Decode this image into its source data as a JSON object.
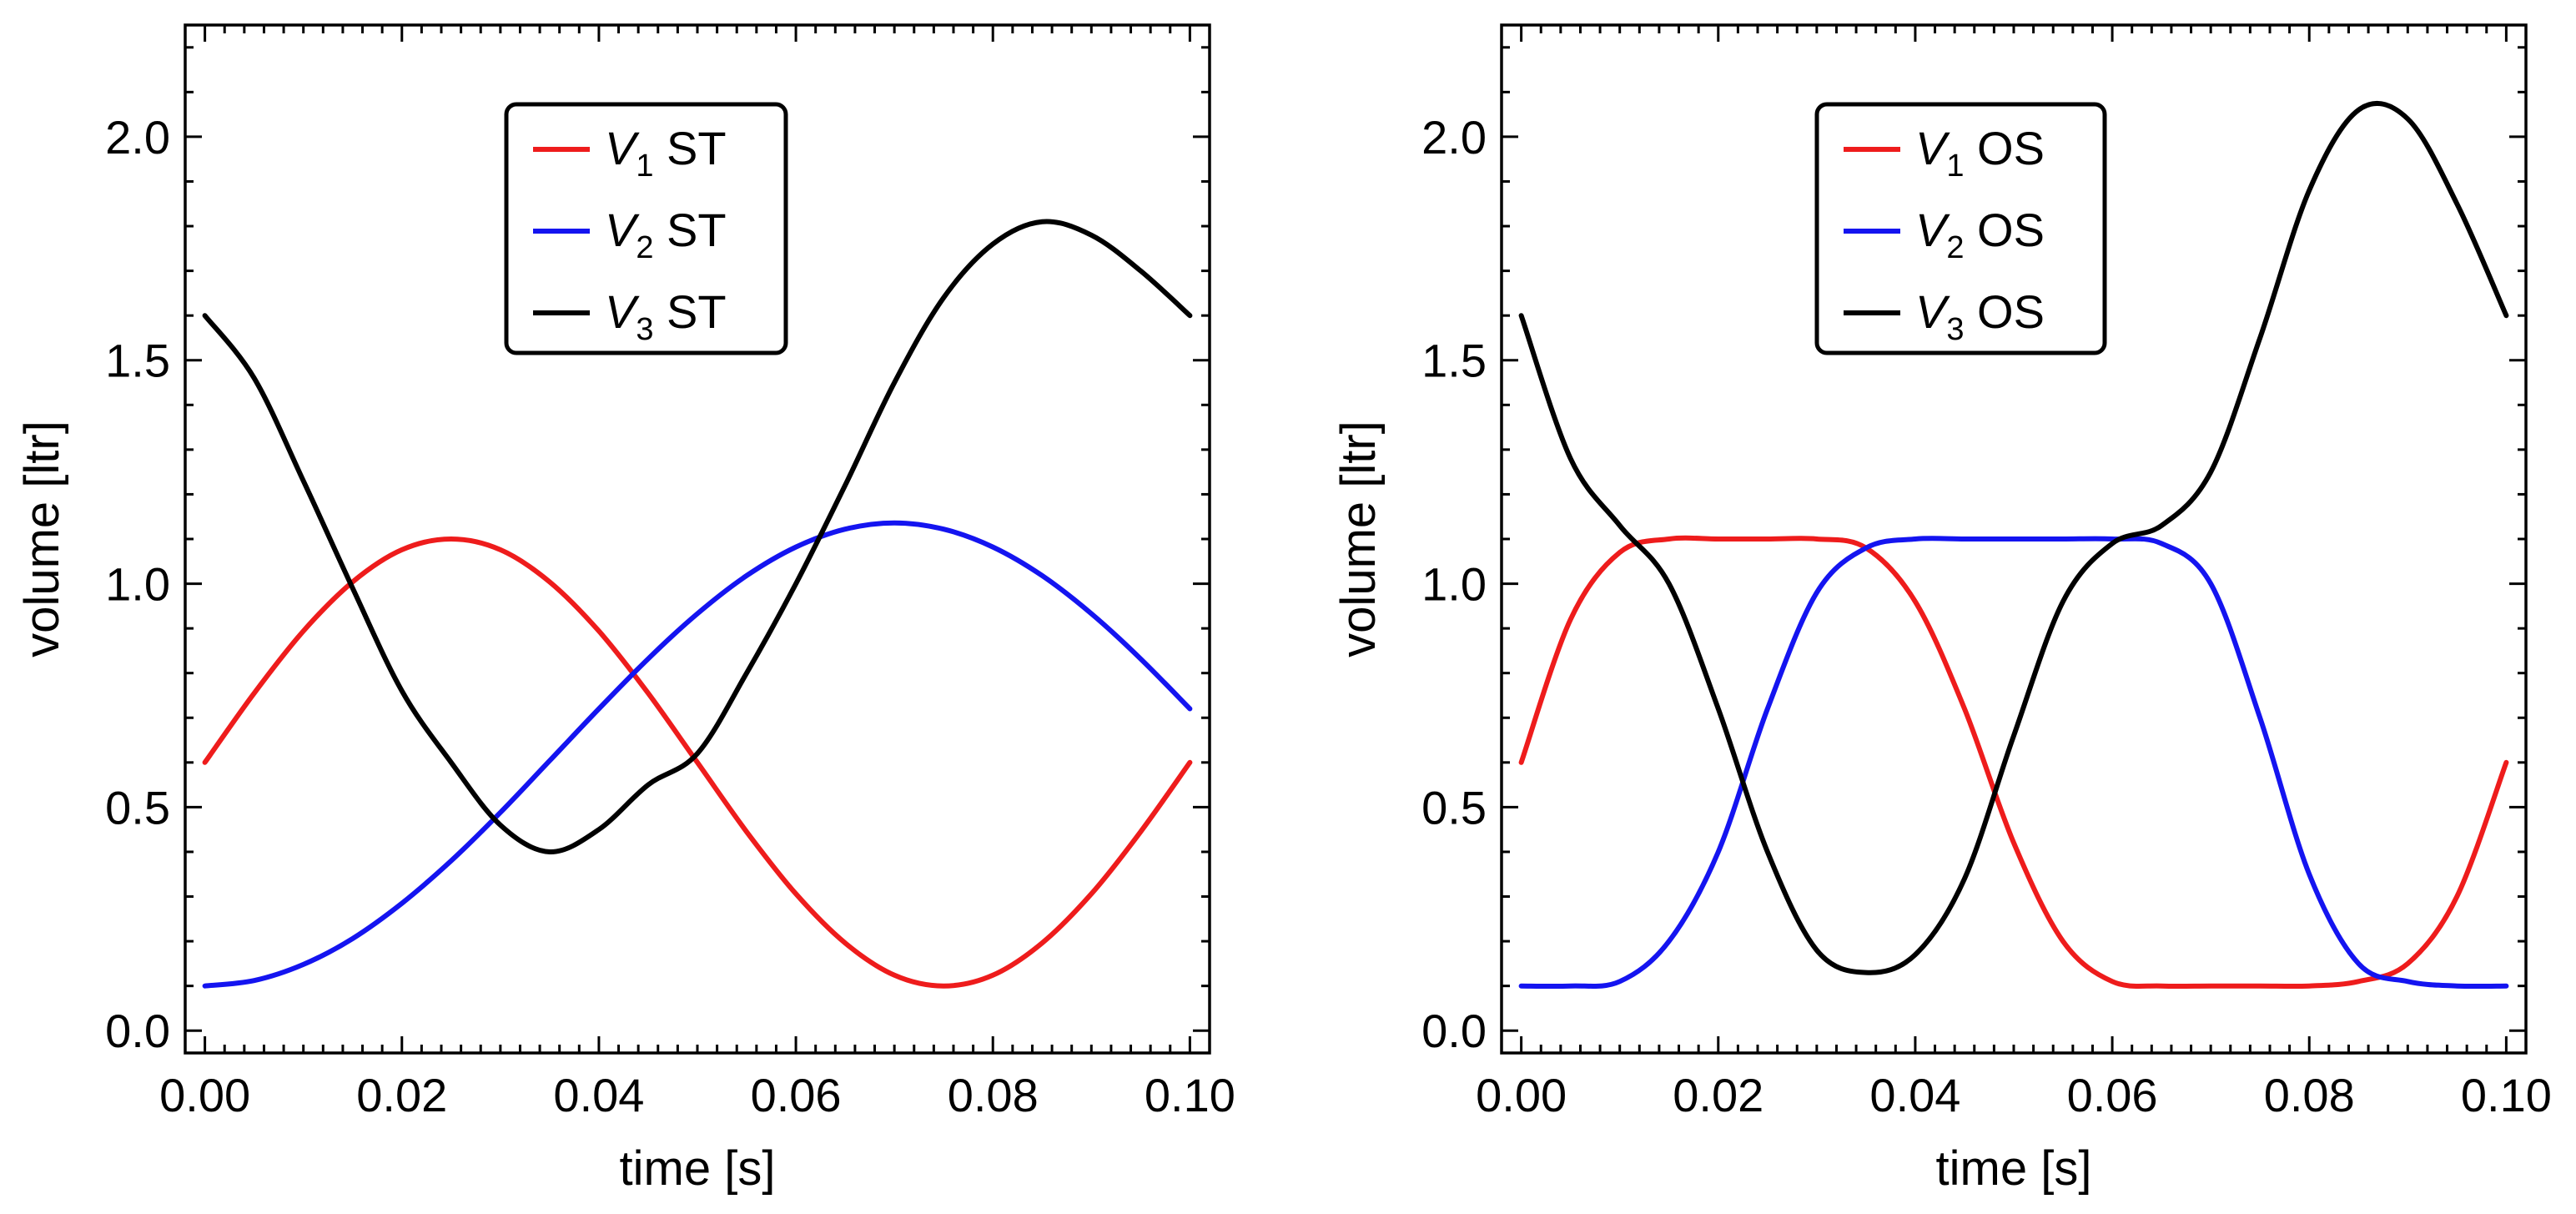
{
  "chart_data": [
    {
      "type": "line",
      "id": "st",
      "xlabel": "time [s]",
      "ylabel": "volume [ltr]",
      "xlim": [
        -0.002,
        0.102
      ],
      "ylim": [
        -0.05,
        2.25
      ],
      "x_ticks": [
        0.0,
        0.02,
        0.04,
        0.06,
        0.08,
        0.1
      ],
      "x_tick_labels": [
        "0.00",
        "0.02",
        "0.04",
        "0.06",
        "0.08",
        "0.10"
      ],
      "y_ticks": [
        0.0,
        0.5,
        1.0,
        1.5,
        2.0
      ],
      "y_tick_labels": [
        "0.0",
        "0.5",
        "1.0",
        "1.5",
        "2.0"
      ],
      "legend": {
        "placement": "top-center"
      },
      "series": [
        {
          "name": "V1 ST",
          "symbol": "V",
          "subscript": "1",
          "suffix": " ST",
          "color": "#ee1c1c",
          "x": [
            0.0,
            0.005,
            0.01,
            0.015,
            0.02,
            0.025,
            0.03,
            0.035,
            0.04,
            0.045,
            0.05,
            0.055,
            0.06,
            0.065,
            0.07,
            0.075,
            0.08,
            0.085,
            0.09,
            0.095,
            0.1
          ],
          "y": [
            0.6,
            0.755,
            0.894,
            1.004,
            1.076,
            1.1,
            1.076,
            1.004,
            0.894,
            0.755,
            0.6,
            0.445,
            0.306,
            0.196,
            0.124,
            0.1,
            0.124,
            0.196,
            0.306,
            0.445,
            0.6
          ]
        },
        {
          "name": "V2 ST",
          "symbol": "V",
          "subscript": "2",
          "suffix": " ST",
          "color": "#1414f0",
          "x": [
            0.0,
            0.005,
            0.01,
            0.015,
            0.02,
            0.025,
            0.03,
            0.035,
            0.04,
            0.045,
            0.05,
            0.055,
            0.06,
            0.065,
            0.07,
            0.075,
            0.08,
            0.085,
            0.09,
            0.095,
            0.1
          ],
          "y": [
            0.1,
            0.112,
            0.148,
            0.206,
            0.285,
            0.38,
            0.488,
            0.604,
            0.72,
            0.832,
            0.933,
            1.018,
            1.082,
            1.122,
            1.136,
            1.122,
            1.082,
            1.018,
            0.933,
            0.832,
            0.72
          ]
        },
        {
          "name": "V3 ST",
          "symbol": "V",
          "subscript": "3",
          "suffix": " ST",
          "color": "#000000",
          "x": [
            0.0,
            0.005,
            0.01,
            0.015,
            0.02,
            0.025,
            0.03,
            0.035,
            0.04,
            0.045,
            0.05,
            0.055,
            0.06,
            0.065,
            0.07,
            0.075,
            0.08,
            0.085,
            0.09,
            0.095,
            0.1
          ],
          "y": [
            1.6,
            1.46,
            1.23,
            0.99,
            0.76,
            0.6,
            0.46,
            0.4,
            0.45,
            0.55,
            0.62,
            0.8,
            1.0,
            1.22,
            1.45,
            1.64,
            1.76,
            1.81,
            1.78,
            1.7,
            1.6
          ]
        }
      ]
    },
    {
      "type": "line",
      "id": "os",
      "xlabel": "time [s]",
      "ylabel": "volume [ltr]",
      "xlim": [
        -0.002,
        0.102
      ],
      "ylim": [
        -0.05,
        2.25
      ],
      "x_ticks": [
        0.0,
        0.02,
        0.04,
        0.06,
        0.08,
        0.1
      ],
      "x_tick_labels": [
        "0.00",
        "0.02",
        "0.04",
        "0.06",
        "0.08",
        "0.10"
      ],
      "y_ticks": [
        0.0,
        0.5,
        1.0,
        1.5,
        2.0
      ],
      "y_tick_labels": [
        "0.0",
        "0.5",
        "1.0",
        "1.5",
        "2.0"
      ],
      "legend": {
        "placement": "top-center"
      },
      "series": [
        {
          "name": "V1 OS",
          "symbol": "V",
          "subscript": "1",
          "suffix": " OS",
          "color": "#ee1c1c",
          "x": [
            0.0,
            0.005,
            0.01,
            0.015,
            0.02,
            0.025,
            0.03,
            0.035,
            0.04,
            0.045,
            0.05,
            0.055,
            0.06,
            0.065,
            0.07,
            0.075,
            0.08,
            0.085,
            0.09,
            0.095,
            0.1
          ],
          "y": [
            0.6,
            0.92,
            1.07,
            1.1,
            1.1,
            1.1,
            1.1,
            1.08,
            0.96,
            0.72,
            0.42,
            0.2,
            0.11,
            0.1,
            0.1,
            0.1,
            0.1,
            0.11,
            0.15,
            0.3,
            0.6
          ]
        },
        {
          "name": "V2 OS",
          "symbol": "V",
          "subscript": "2",
          "suffix": " OS",
          "color": "#1414f0",
          "x": [
            0.0,
            0.005,
            0.01,
            0.015,
            0.02,
            0.025,
            0.03,
            0.035,
            0.04,
            0.045,
            0.05,
            0.055,
            0.06,
            0.065,
            0.07,
            0.075,
            0.08,
            0.085,
            0.09,
            0.095,
            0.1
          ],
          "y": [
            0.1,
            0.1,
            0.11,
            0.2,
            0.4,
            0.72,
            0.98,
            1.08,
            1.1,
            1.1,
            1.1,
            1.1,
            1.1,
            1.09,
            1.0,
            0.7,
            0.35,
            0.15,
            0.11,
            0.1,
            0.1
          ]
        },
        {
          "name": "V3 OS",
          "symbol": "V",
          "subscript": "3",
          "suffix": " OS",
          "color": "#000000",
          "x": [
            0.0,
            0.005,
            0.01,
            0.015,
            0.02,
            0.025,
            0.03,
            0.035,
            0.04,
            0.045,
            0.05,
            0.055,
            0.06,
            0.065,
            0.07,
            0.075,
            0.08,
            0.085,
            0.09,
            0.095,
            0.1
          ],
          "y": [
            1.6,
            1.28,
            1.13,
            1.0,
            0.72,
            0.4,
            0.18,
            0.13,
            0.17,
            0.34,
            0.66,
            0.96,
            1.09,
            1.13,
            1.25,
            1.55,
            1.88,
            2.06,
            2.04,
            1.85,
            1.6
          ]
        }
      ]
    }
  ]
}
